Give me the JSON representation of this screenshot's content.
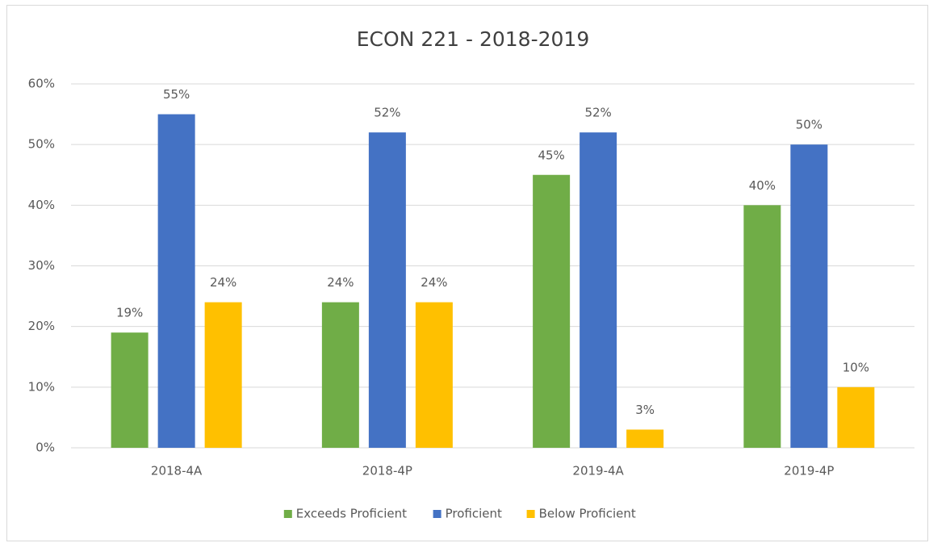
{
  "chart_data": {
    "type": "bar",
    "title": "ECON 221 - 2018-2019",
    "categories": [
      "2018-4A",
      "2018-4P",
      "2019-4A",
      "2019-4P"
    ],
    "series": [
      {
        "name": "Exceeds Proficient",
        "color": "#70ad47",
        "values": [
          19,
          24,
          45,
          40
        ],
        "value_labels": [
          "19%",
          "24%",
          "45%",
          "40%"
        ]
      },
      {
        "name": "Proficient",
        "color": "#4472c4",
        "values": [
          55,
          52,
          52,
          50
        ],
        "value_labels": [
          "55%",
          "52%",
          "52%",
          "50%"
        ]
      },
      {
        "name": "Below Proficient",
        "color": "#ffc000",
        "values": [
          24,
          24,
          3,
          10
        ],
        "value_labels": [
          "24%",
          "24%",
          "3%",
          "10%"
        ]
      }
    ],
    "ylim": [
      0,
      60
    ],
    "yticks": [
      {
        "value": 0,
        "label": "0%"
      },
      {
        "value": 10,
        "label": "10%"
      },
      {
        "value": 20,
        "label": "20%"
      },
      {
        "value": 30,
        "label": "30%"
      },
      {
        "value": 40,
        "label": "40%"
      },
      {
        "value": 50,
        "label": "50%"
      },
      {
        "value": 60,
        "label": "60%"
      }
    ],
    "grid": true,
    "legend": "bottom"
  }
}
